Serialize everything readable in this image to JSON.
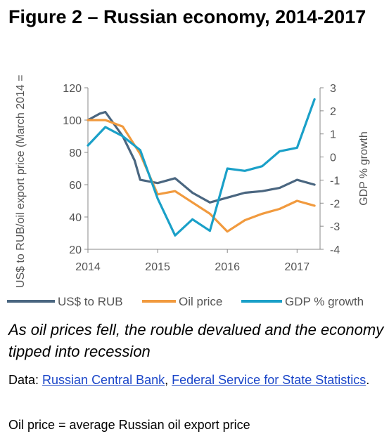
{
  "title": "Figure 2 – Russian economy, 2014-2017",
  "caption": "As oil prices fell, the rouble devalued and the economy tipped into recession",
  "source": {
    "prefix": "Data: ",
    "link1": "Russian Central Bank",
    "separator": ", ",
    "link2": "Federal Service for State Statistics",
    "suffix": "."
  },
  "note": "Oil price = average Russian oil export price",
  "chart_data": {
    "type": "line",
    "ylabel_left": "US$ to RUB/oil export price (March 2014 = 100)",
    "ylabel_right": "GDP % growth",
    "x_ticks": [
      "2014",
      "2015",
      "2016",
      "2017"
    ],
    "xlim": [
      2014.0,
      2017.33
    ],
    "ylim_left": [
      20,
      120
    ],
    "ylim_right": [
      -4,
      3
    ],
    "y_ticks_left": [
      "20",
      "40",
      "60",
      "80",
      "100",
      "120"
    ],
    "y_ticks_right": [
      "-4",
      "-3",
      "-2",
      "-1",
      "0",
      "1",
      "2",
      "3"
    ],
    "grid": false,
    "legend_position": "bottom",
    "series": [
      {
        "name": "US$ to RUB",
        "axis": "left",
        "color": "#4a6680",
        "points": [
          [
            2014.0,
            100
          ],
          [
            2014.17,
            104
          ],
          [
            2014.25,
            105
          ],
          [
            2014.5,
            90
          ],
          [
            2014.67,
            75
          ],
          [
            2014.75,
            63
          ],
          [
            2015.0,
            61
          ],
          [
            2015.25,
            64
          ],
          [
            2015.5,
            55
          ],
          [
            2015.75,
            49
          ],
          [
            2016.0,
            52
          ],
          [
            2016.25,
            55
          ],
          [
            2016.5,
            56
          ],
          [
            2016.75,
            58
          ],
          [
            2017.0,
            63
          ],
          [
            2017.25,
            60
          ]
        ]
      },
      {
        "name": "Oil price",
        "axis": "left",
        "color": "#f19a3e",
        "points": [
          [
            2014.0,
            100
          ],
          [
            2014.25,
            100
          ],
          [
            2014.5,
            96
          ],
          [
            2014.75,
            79
          ],
          [
            2015.0,
            54
          ],
          [
            2015.25,
            56
          ],
          [
            2015.5,
            49
          ],
          [
            2015.75,
            42
          ],
          [
            2016.0,
            31
          ],
          [
            2016.25,
            38
          ],
          [
            2016.5,
            42
          ],
          [
            2016.75,
            45
          ],
          [
            2017.0,
            50
          ],
          [
            2017.25,
            47
          ]
        ]
      },
      {
        "name": "GDP % growth",
        "axis": "right",
        "color": "#1aa0c8",
        "points": [
          [
            2014.0,
            0.5
          ],
          [
            2014.25,
            1.3
          ],
          [
            2014.5,
            0.9
          ],
          [
            2014.75,
            0.3
          ],
          [
            2015.0,
            -1.8
          ],
          [
            2015.25,
            -3.4
          ],
          [
            2015.5,
            -2.7
          ],
          [
            2015.75,
            -3.2
          ],
          [
            2016.0,
            -0.5
          ],
          [
            2016.25,
            -0.6
          ],
          [
            2016.5,
            -0.4
          ],
          [
            2016.75,
            0.25
          ],
          [
            2017.0,
            0.4
          ],
          [
            2017.25,
            2.5
          ]
        ]
      }
    ]
  }
}
